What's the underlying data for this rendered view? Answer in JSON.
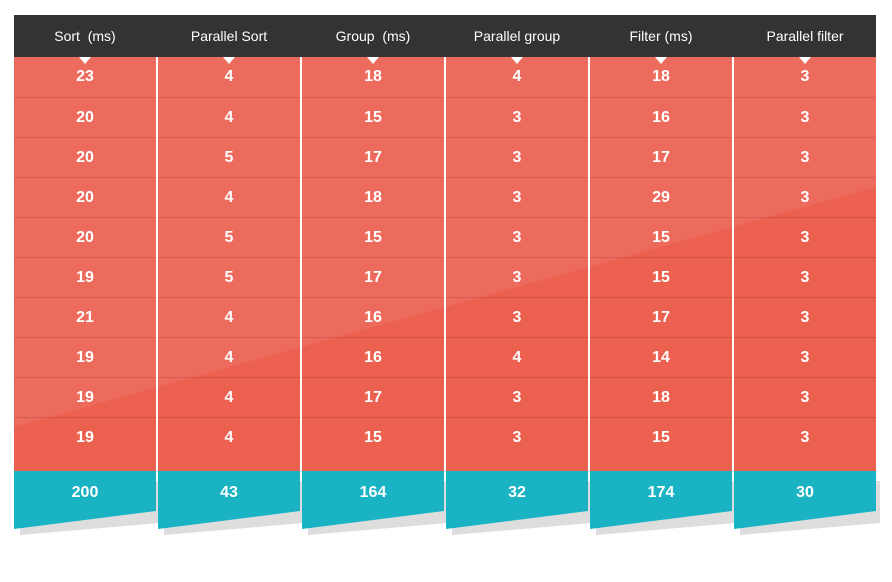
{
  "columns": [
    {
      "header": "Sort  (ms)",
      "values": [
        "23",
        "20",
        "20",
        "20",
        "20",
        "19",
        "21",
        "19",
        "19",
        "19"
      ],
      "total": "200"
    },
    {
      "header": "Parallel Sort",
      "values": [
        "4",
        "4",
        "5",
        "4",
        "5",
        "5",
        "4",
        "4",
        "4",
        "4"
      ],
      "total": "43"
    },
    {
      "header": "Group  (ms)",
      "values": [
        "18",
        "15",
        "17",
        "18",
        "15",
        "17",
        "16",
        "16",
        "17",
        "15"
      ],
      "total": "164"
    },
    {
      "header": "Parallel group",
      "values": [
        "4",
        "3",
        "3",
        "3",
        "3",
        "3",
        "3",
        "4",
        "3",
        "3"
      ],
      "total": "32"
    },
    {
      "header": "Filter (ms)",
      "values": [
        "18",
        "16",
        "17",
        "29",
        "15",
        "15",
        "17",
        "14",
        "18",
        "15"
      ],
      "total": "174"
    },
    {
      "header": "Parallel filter",
      "values": [
        "3",
        "3",
        "3",
        "3",
        "3",
        "3",
        "3",
        "3",
        "3",
        "3"
      ],
      "total": "30"
    }
  ],
  "colors": {
    "header_bg": "#333333",
    "body_bg": "#ec6050",
    "total_bg": "#1ab3c3"
  }
}
